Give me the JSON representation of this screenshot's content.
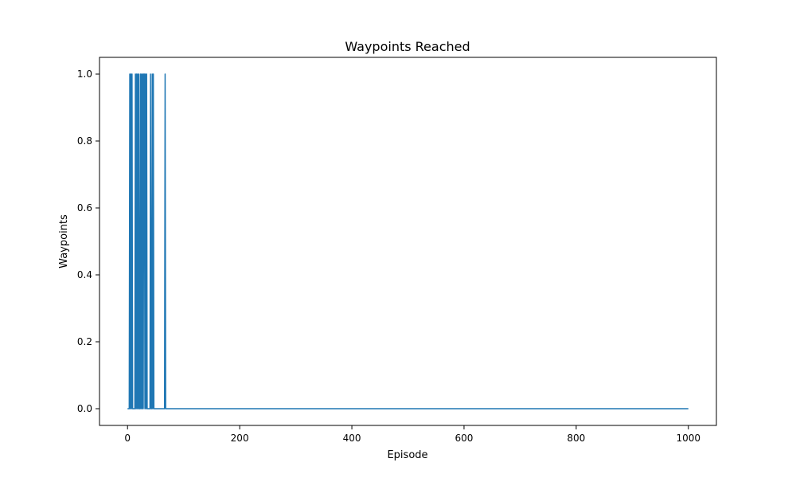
{
  "chart_data": {
    "type": "line",
    "title": "Waypoints Reached",
    "xlabel": "Episode",
    "ylabel": "Waypoints",
    "xlim": [
      -50,
      1050
    ],
    "ylim": [
      -0.05,
      1.05
    ],
    "xticks": [
      0,
      200,
      400,
      600,
      800,
      1000
    ],
    "xtick_labels": [
      "0",
      "200",
      "400",
      "600",
      "800",
      "1000"
    ],
    "yticks": [
      0.0,
      0.2,
      0.4,
      0.6,
      0.8,
      1.0
    ],
    "ytick_labels": [
      "0.0",
      "0.2",
      "0.4",
      "0.6",
      "0.8",
      "1.0"
    ],
    "grid": false,
    "line_color": "#1f77b4",
    "series": [
      {
        "x": [
          0,
          1,
          2,
          3,
          4,
          5,
          6,
          7,
          8,
          9,
          10,
          11,
          12,
          13,
          14,
          15,
          16,
          17,
          18,
          19,
          20,
          21,
          22,
          23,
          24,
          25,
          26,
          27,
          28,
          29,
          30,
          31,
          32,
          33,
          34,
          35,
          36,
          37,
          38,
          39,
          40,
          41,
          42,
          43,
          44,
          45,
          46,
          47,
          48,
          49,
          50,
          51,
          52,
          53,
          54,
          55,
          56,
          57,
          58,
          59,
          60,
          61,
          62,
          63,
          64,
          65,
          66,
          67,
          68,
          69,
          70,
          71,
          72,
          73,
          74,
          75,
          1000
        ],
        "y": [
          0,
          0,
          0,
          0,
          1,
          0,
          1,
          0,
          1,
          0,
          0,
          0,
          0,
          0,
          1,
          0,
          1,
          0,
          1,
          0,
          1,
          0,
          0,
          1,
          0,
          1,
          0,
          1,
          0,
          1,
          1,
          0,
          1,
          0,
          1,
          0,
          0,
          0,
          0,
          0,
          0,
          1,
          0,
          0,
          1,
          0,
          1,
          0,
          0,
          0,
          0,
          0,
          0,
          0,
          0,
          0,
          0,
          0,
          0,
          0,
          0,
          0,
          0,
          0,
          0,
          0,
          0,
          1,
          0,
          0,
          0,
          0,
          0,
          0,
          0,
          0,
          0
        ]
      }
    ]
  }
}
